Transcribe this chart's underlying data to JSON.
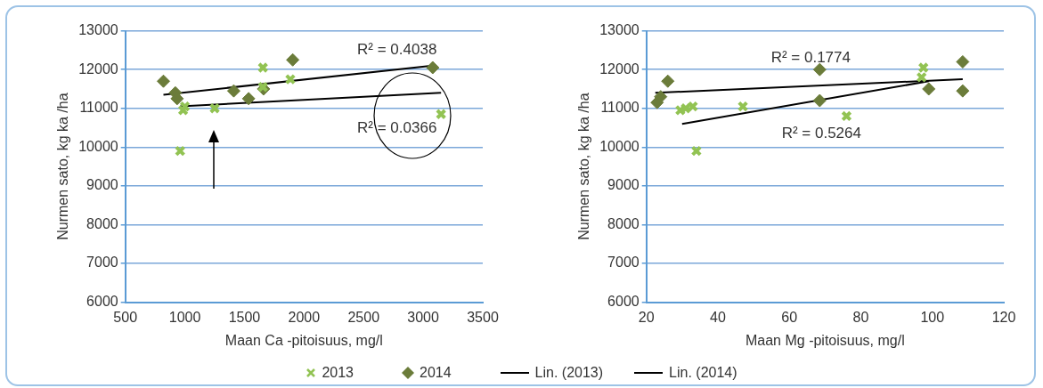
{
  "chart_data": [
    {
      "type": "scatter",
      "xlabel": "Maan Ca -pitoisuus, mg/l",
      "ylabel": "Nurmen sato, kg ka /ha",
      "xlim": [
        500,
        3500
      ],
      "xticks": [
        500,
        1000,
        1500,
        2000,
        2500,
        3000,
        3500
      ],
      "ylim": [
        6000,
        13000
      ],
      "yticks": [
        6000,
        7000,
        8000,
        9000,
        10000,
        11000,
        12000,
        13000
      ],
      "grid": "y",
      "legend": "bottom",
      "series": [
        {
          "name": "2013",
          "marker": "cross",
          "color": "#92c353",
          "x": [
            960,
            985,
            1000,
            1250,
            1655,
            1655,
            1885,
            3150
          ],
          "values": [
            9900,
            10950,
            11050,
            11000,
            12050,
            11550,
            11750,
            10850
          ]
        },
        {
          "name": "2014",
          "marker": "diamond",
          "color": "#6b7c3a",
          "x": [
            820,
            920,
            935,
            1410,
            1535,
            1660,
            1905,
            3080
          ],
          "values": [
            11700,
            11400,
            11250,
            11450,
            11250,
            11500,
            12250,
            12050
          ]
        },
        {
          "name": "Lin. (2013)",
          "type": "line",
          "color": "#000000",
          "x": [
            960,
            3150
          ],
          "values": [
            11050,
            11400
          ]
        },
        {
          "name": "Lin. (2014)",
          "type": "line",
          "color": "#000000",
          "x": [
            820,
            3080
          ],
          "values": [
            11350,
            12100
          ]
        }
      ],
      "annotations": [
        "R² = 0.4038",
        "R² = 0.0366"
      ]
    },
    {
      "type": "scatter",
      "xlabel": "Maan Mg -pitoisuus, mg/l",
      "ylabel": "Nurmen sato, kg ka /ha",
      "xlim": [
        20,
        120
      ],
      "xticks": [
        20,
        40,
        60,
        80,
        100,
        120
      ],
      "ylim": [
        6000,
        13000
      ],
      "yticks": [
        6000,
        7000,
        8000,
        9000,
        10000,
        11000,
        12000,
        13000
      ],
      "grid": "y",
      "legend": "bottom",
      "series": [
        {
          "name": "2013",
          "marker": "cross",
          "color": "#92c353",
          "x": [
            29.5,
            31,
            33,
            34,
            47,
            76,
            97,
            97.5
          ],
          "values": [
            10950,
            11000,
            11050,
            9900,
            11050,
            10800,
            11800,
            12050
          ]
        },
        {
          "name": "2014",
          "marker": "diamond",
          "color": "#6b7c3a",
          "x": [
            23,
            24,
            26,
            68.5,
            68.5,
            99,
            108.5,
            108.5
          ],
          "values": [
            11150,
            11300,
            11700,
            12000,
            11200,
            11500,
            12200,
            11450
          ]
        },
        {
          "name": "Lin. (2013)",
          "type": "line",
          "color": "#000000",
          "x": [
            30,
            99
          ],
          "values": [
            10600,
            11700
          ]
        },
        {
          "name": "Lin. (2014)",
          "type": "line",
          "color": "#000000",
          "x": [
            22.5,
            108.5
          ],
          "values": [
            11400,
            11750
          ]
        }
      ],
      "annotations": [
        "R² = 0.1774",
        "R² = 0.5264"
      ]
    }
  ]
}
